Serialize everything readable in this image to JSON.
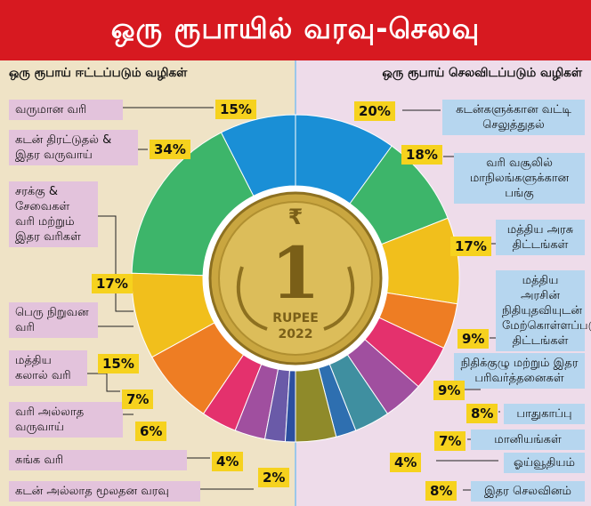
{
  "title": "ஒரு ரூபாயில் வரவு-செலவு",
  "coin": {
    "symbol": "₹",
    "denomination": "1",
    "text": "RUPEE",
    "year": "2022"
  },
  "colors": {
    "banner": "#d71920",
    "left_panel": "#efe3c6",
    "right_panel": "#eedcea",
    "pct_badge": "#f6d21e"
  },
  "chart_data": [
    {
      "type": "pie",
      "title": "ஒரு ரூபாய் ஈட்டப்படும் வழிகள்",
      "slices": [
        {
          "label": "வருமான வரி",
          "value": 15,
          "display": "15%",
          "color": "#1a8fd6"
        },
        {
          "label": "கடன் திரட்டுதல் & இதர வருவாய்",
          "value": 34,
          "display": "34%",
          "color": "#3db56a"
        },
        {
          "label": "சரக்கு & சேவைகள் வரி மற்றும் இதர வரிகள்",
          "value": 17,
          "display": "17%",
          "color": "#f1bf1c"
        },
        {
          "label": "பெரு நிறுவன வரி",
          "value": 15,
          "display": "15%",
          "color": "#ee7d23"
        },
        {
          "label": "மத்திய கலால் வரி",
          "value": 7,
          "display": "7%",
          "color": "#e4316d"
        },
        {
          "label": "வரி அல்லாத வருவாய்",
          "value": 6,
          "display": "6%",
          "color": "#a04f9f"
        },
        {
          "label": "சுங்க வரி",
          "value": 4,
          "display": "4%",
          "color": "#6a5aa8"
        },
        {
          "label": "கடன் அல்லாத மூலதன வரவு",
          "value": 2,
          "display": "2%",
          "color": "#2c4fa0"
        }
      ]
    },
    {
      "type": "pie",
      "title": "ஒரு ரூபாய் செலவிடப்படும் வழிகள்",
      "slices": [
        {
          "label": "கடன்களுக்கான வட்டி செலுத்துதல்",
          "value": 20,
          "display": "20%",
          "color": "#1a8fd6"
        },
        {
          "label": "வரி வசூலில் மாநிலங்களுக்கான பங்கு",
          "value": 18,
          "display": "18%",
          "color": "#3db56a"
        },
        {
          "label": "மத்திய அரசு திட்டங்கள்",
          "value": 17,
          "display": "17%",
          "color": "#f1bf1c"
        },
        {
          "label": "மத்திய அரசின் நிதியுதவியுடன் மேற்கொள்ளப்படும் திட்டங்கள்",
          "value": 9,
          "display": "9%",
          "color": "#ee7d23"
        },
        {
          "label": "நிதிக்குழு மற்றும் இதர பரிவர்த்தனைகள்",
          "value": 9,
          "display": "9%",
          "color": "#e4316d"
        },
        {
          "label": "பாதுகாப்பு",
          "value": 8,
          "display": "8%",
          "color": "#a04f9f"
        },
        {
          "label": "மானியங்கள்",
          "value": 7,
          "display": "7%",
          "color": "#3f8fa0"
        },
        {
          "label": "ஓய்வூதியம்",
          "value": 4,
          "display": "4%",
          "color": "#2e6fb0"
        },
        {
          "label": "இதர செலவினம்",
          "value": 8,
          "display": "8%",
          "color": "#8f8a2a"
        }
      ]
    }
  ]
}
